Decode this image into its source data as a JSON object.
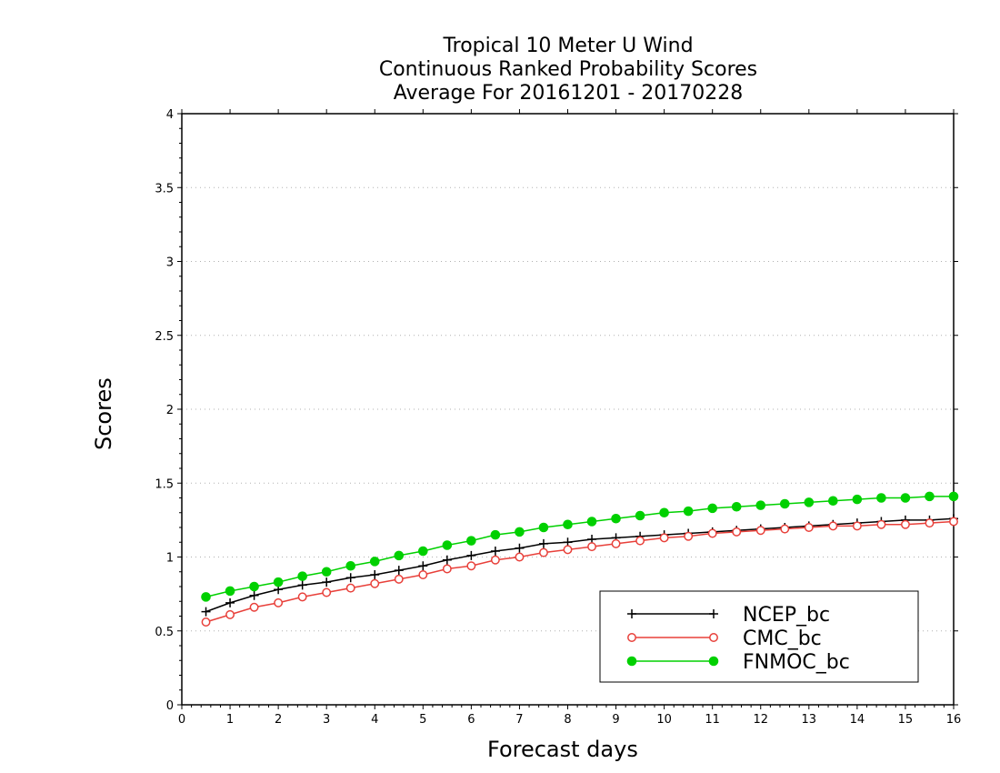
{
  "chart_data": {
    "type": "line",
    "title": [
      "Tropical 10 Meter U Wind",
      "Continuous Ranked Probability Scores",
      "Average For 20161201 - 20170228"
    ],
    "xlabel": "Forecast days",
    "ylabel": "Scores",
    "xlim": [
      0,
      16
    ],
    "ylim": [
      0,
      4
    ],
    "xticks": [
      "0",
      "1",
      "2",
      "3",
      "4",
      "5",
      "6",
      "7",
      "8",
      "9",
      "10",
      "11",
      "12",
      "13",
      "14",
      "15",
      "16"
    ],
    "yticks": [
      "0",
      "0.5",
      "1",
      "1.5",
      "2",
      "2.5",
      "3",
      "3.5",
      "4"
    ],
    "grid": "horizontal dotted",
    "legend_position": "bottom-right",
    "x": [
      0.5,
      1,
      1.5,
      2,
      2.5,
      3,
      3.5,
      4,
      4.5,
      5,
      5.5,
      6,
      6.5,
      7,
      7.5,
      8,
      8.5,
      9,
      9.5,
      10,
      10.5,
      11,
      11.5,
      12,
      12.5,
      13,
      13.5,
      14,
      14.5,
      15,
      15.5,
      16
    ],
    "series": [
      {
        "name": "NCEP_bc",
        "color": "#000000",
        "marker": "plus",
        "values": [
          0.63,
          0.69,
          0.74,
          0.78,
          0.81,
          0.83,
          0.86,
          0.88,
          0.91,
          0.94,
          0.98,
          1.01,
          1.04,
          1.06,
          1.09,
          1.1,
          1.12,
          1.13,
          1.14,
          1.15,
          1.16,
          1.17,
          1.18,
          1.19,
          1.2,
          1.21,
          1.22,
          1.23,
          1.24,
          1.25,
          1.25,
          1.26
        ]
      },
      {
        "name": "CMC_bc",
        "color": "#e8403a",
        "marker": "open-circle",
        "values": [
          0.56,
          0.61,
          0.66,
          0.69,
          0.73,
          0.76,
          0.79,
          0.82,
          0.85,
          0.88,
          0.92,
          0.94,
          0.98,
          1.0,
          1.03,
          1.05,
          1.07,
          1.09,
          1.11,
          1.13,
          1.14,
          1.16,
          1.17,
          1.18,
          1.19,
          1.2,
          1.21,
          1.21,
          1.22,
          1.22,
          1.23,
          1.24
        ]
      },
      {
        "name": "FNMOC_bc",
        "color": "#00d000",
        "marker": "filled-circle",
        "values": [
          0.73,
          0.77,
          0.8,
          0.83,
          0.87,
          0.9,
          0.94,
          0.97,
          1.01,
          1.04,
          1.08,
          1.11,
          1.15,
          1.17,
          1.2,
          1.22,
          1.24,
          1.26,
          1.28,
          1.3,
          1.31,
          1.33,
          1.34,
          1.35,
          1.36,
          1.37,
          1.38,
          1.39,
          1.4,
          1.4,
          1.41,
          1.41
        ]
      }
    ]
  }
}
